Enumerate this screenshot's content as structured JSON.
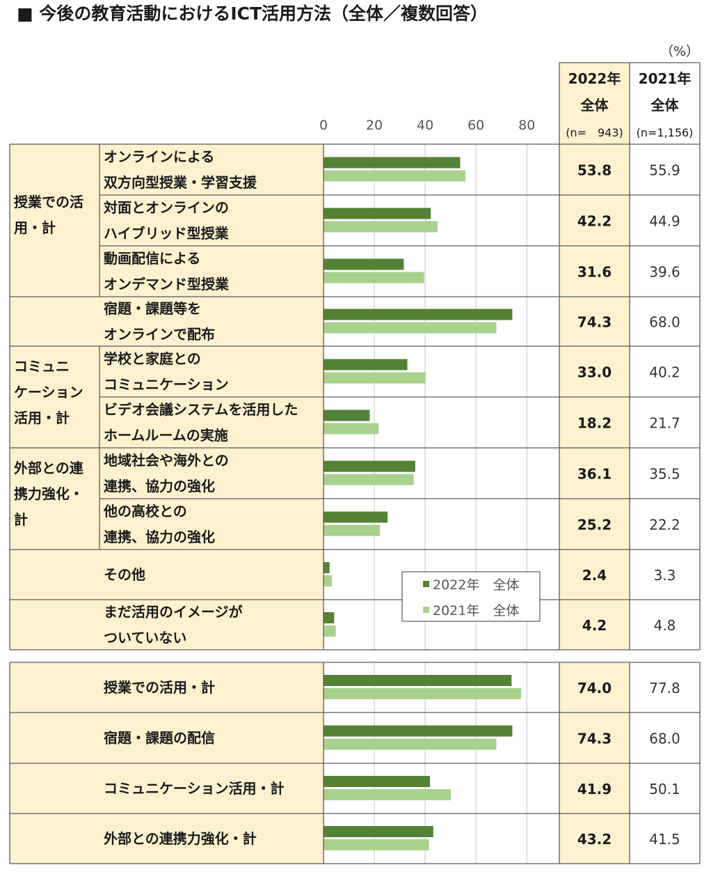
{
  "chart_data": {
    "type": "bar",
    "title": "■ 今後の教育活動におけるICT活用方法（全体／複数回答）",
    "unit": "（%）",
    "xlim": [
      0,
      80
    ],
    "ticks": [
      "0",
      "20",
      "40",
      "60",
      "80"
    ],
    "tick_values": [
      0,
      20,
      40,
      60,
      80
    ],
    "grid": true,
    "colors": {
      "2022": "#548235",
      "2021": "#a9d18e",
      "label_bg": "#fdf1d0",
      "value_bg": "#fdf1d0",
      "border": "#5a5a5a",
      "grid": "#cfcfcf"
    },
    "columns": [
      {
        "year": "2022年",
        "group": "全体",
        "n": "(n=　943)"
      },
      {
        "year": "2021年",
        "group": "全体",
        "n": "(n=1,156)"
      }
    ],
    "legend": [
      "2022年　全体",
      "2021年　全体"
    ],
    "groups": [
      {
        "label": [
          "授業での活",
          "用・計"
        ],
        "rows": [
          0,
          1,
          2
        ]
      },
      {
        "label": [],
        "rows": [
          3
        ]
      },
      {
        "label": [
          "コミュニ",
          "ケーション",
          "活用・計"
        ],
        "rows": [
          4,
          5
        ]
      },
      {
        "label": [
          "外部との連",
          "携力強化・",
          "計"
        ],
        "rows": [
          6,
          7
        ]
      },
      {
        "label": [],
        "rows": [
          8
        ]
      },
      {
        "label": [],
        "rows": [
          9
        ]
      },
      {
        "label": [],
        "rows": [
          10
        ]
      },
      {
        "label": [],
        "rows": [
          11
        ]
      },
      {
        "label": [],
        "rows": [
          12
        ]
      },
      {
        "label": [],
        "rows": [
          13
        ]
      }
    ],
    "rows": [
      {
        "label": [
          "オンラインによる",
          "双方向型授業・学習支援"
        ],
        "v2022": 53.8,
        "v2021": 55.9,
        "t2022": "53.8",
        "t2021": "55.9"
      },
      {
        "label": [
          "対面とオンラインの",
          "ハイブリッド型授業"
        ],
        "v2022": 42.2,
        "v2021": 44.9,
        "t2022": "42.2",
        "t2021": "44.9"
      },
      {
        "label": [
          "動画配信による",
          "オンデマンド型授業"
        ],
        "v2022": 31.6,
        "v2021": 39.6,
        "t2022": "31.6",
        "t2021": "39.6"
      },
      {
        "label": [
          "宿題・課題等を",
          "オンラインで配布"
        ],
        "v2022": 74.3,
        "v2021": 68.0,
        "t2022": "74.3",
        "t2021": "68.0"
      },
      {
        "label": [
          "学校と家庭との",
          "コミュニケーション"
        ],
        "v2022": 33.0,
        "v2021": 40.2,
        "t2022": "33.0",
        "t2021": "40.2"
      },
      {
        "label": [
          "ビデオ会議システムを活用した",
          "ホームルームの実施"
        ],
        "v2022": 18.2,
        "v2021": 21.7,
        "t2022": "18.2",
        "t2021": "21.7"
      },
      {
        "label": [
          "地域社会や海外との",
          "連携、協力の強化"
        ],
        "v2022": 36.1,
        "v2021": 35.5,
        "t2022": "36.1",
        "t2021": "35.5"
      },
      {
        "label": [
          "他の高校との",
          "連携、協力の強化"
        ],
        "v2022": 25.2,
        "v2021": 22.2,
        "t2022": "25.2",
        "t2021": "22.2"
      },
      {
        "label": [
          "その他"
        ],
        "v2022": 2.4,
        "v2021": 3.3,
        "t2022": "2.4",
        "t2021": "3.3"
      },
      {
        "label": [
          "まだ活用のイメージが",
          "ついていない"
        ],
        "v2022": 4.2,
        "v2021": 4.8,
        "t2022": "4.2",
        "t2021": "4.8"
      },
      {
        "label": [
          "授業での活用・計"
        ],
        "v2022": 74.0,
        "v2021": 77.8,
        "t2022": "74.0",
        "t2021": "77.8"
      },
      {
        "label": [
          "宿題・課題の配信"
        ],
        "v2022": 74.3,
        "v2021": 68.0,
        "t2022": "74.3",
        "t2021": "68.0"
      },
      {
        "label": [
          "コミュニケーション活用・計"
        ],
        "v2022": 41.9,
        "v2021": 50.1,
        "t2022": "41.9",
        "t2021": "50.1"
      },
      {
        "label": [
          "外部との連携力強化・計"
        ],
        "v2022": 43.2,
        "v2021": 41.5,
        "t2022": "43.2",
        "t2021": "41.5"
      }
    ]
  }
}
